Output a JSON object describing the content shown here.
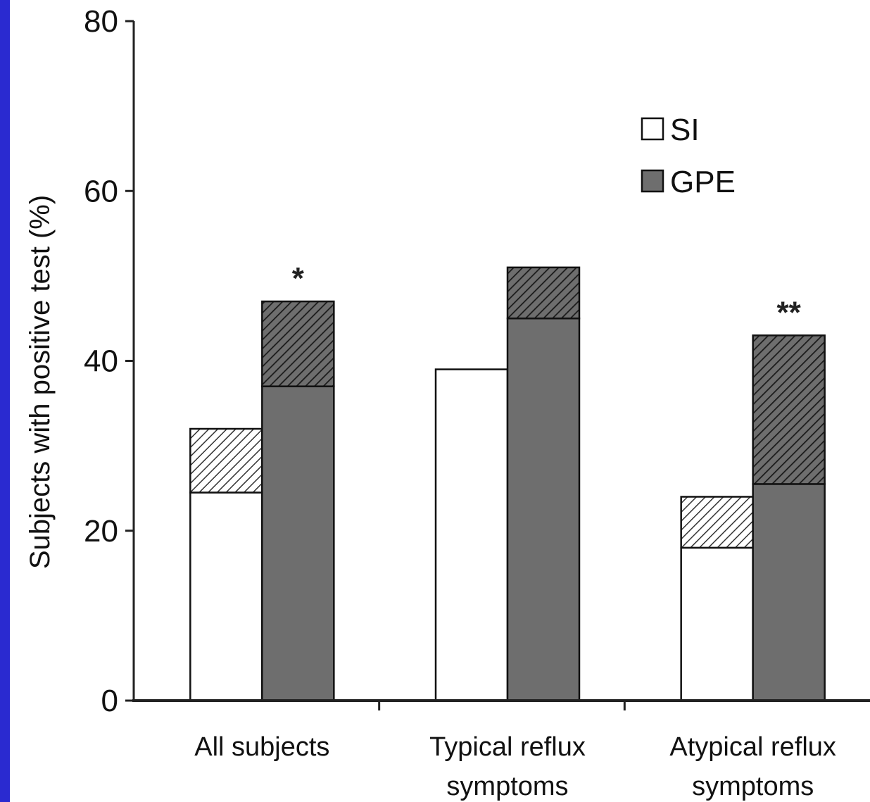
{
  "chart_data": {
    "type": "bar",
    "title": "",
    "ylabel": "Subjects with positive test (%)",
    "xlabel": "",
    "ylim": [
      0,
      80
    ],
    "yticks": [
      0,
      20,
      40,
      60,
      80
    ],
    "categories": [
      "All subjects",
      "Typical reflux symptoms",
      "Atypical reflux symptoms"
    ],
    "category_lines": [
      [
        "All subjects"
      ],
      [
        "Typical reflux",
        "symptoms"
      ],
      [
        "Atypical reflux",
        "symptoms"
      ]
    ],
    "series": [
      {
        "name": "SI",
        "values": [
          32,
          39,
          24
        ],
        "hatched_from": [
          24.5,
          null,
          18
        ],
        "color": "#ffffff"
      },
      {
        "name": "GPE",
        "values": [
          47,
          51,
          43
        ],
        "hatched_from": [
          37,
          45,
          25.5
        ],
        "color": "#6e6e6e"
      }
    ],
    "significance": [
      "*",
      "",
      "**"
    ],
    "legend_position": "top-right",
    "grid": false
  }
}
